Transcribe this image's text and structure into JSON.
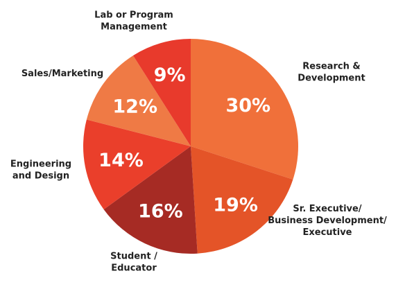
{
  "chart_data": {
    "type": "pie",
    "title": "",
    "slices": [
      {
        "label": [
          "Research &",
          "Development"
        ],
        "value": 30,
        "value_label": "30%",
        "color": "#f0703a"
      },
      {
        "label": [
          "Sr. Executive/",
          "Business Development/",
          "Executive"
        ],
        "value": 19,
        "value_label": "19%",
        "color": "#e45428"
      },
      {
        "label": [
          "Student /",
          "Educator"
        ],
        "value": 16,
        "value_label": "16%",
        "color": "#a62b24"
      },
      {
        "label": [
          "Engineering",
          "and Design"
        ],
        "value": 14,
        "value_label": "14%",
        "color": "#ea3f2b"
      },
      {
        "label": [
          "Sales/Marketing"
        ],
        "value": 12,
        "value_label": "12%",
        "color": "#ef7a45"
      },
      {
        "label": [
          "Lab or Program",
          "Management"
        ],
        "value": 9,
        "value_label": "9%",
        "color": "#e83a2c"
      }
    ]
  }
}
